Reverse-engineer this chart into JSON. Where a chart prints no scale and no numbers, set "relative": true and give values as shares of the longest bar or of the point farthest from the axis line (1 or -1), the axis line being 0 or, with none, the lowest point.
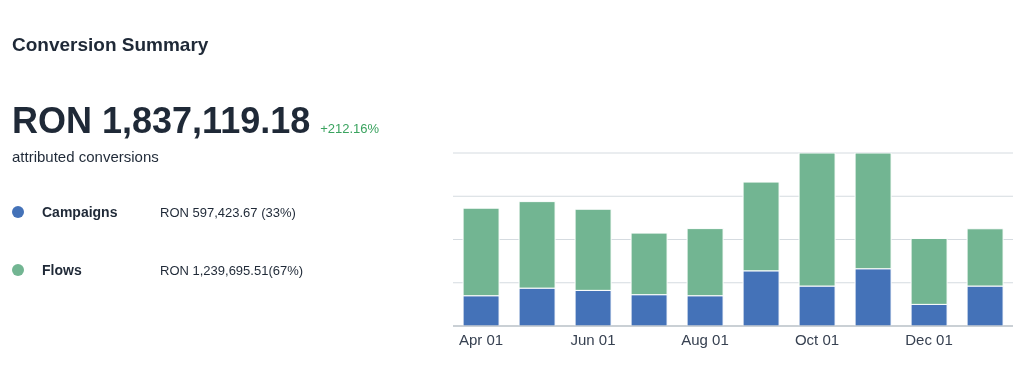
{
  "chart_data": {
    "type": "bar",
    "title": "Conversion Summary",
    "subtitle": "RON 1,837,119.18",
    "annotations": [
      "+212.16%",
      "attributed conversions",
      "RON 597,423.67 (33%)",
      "RON 1,239,695.51(67%)"
    ],
    "categories": [
      "Apr 01",
      null,
      "Jun 01",
      null,
      "Aug 01",
      null,
      "Oct 01",
      null,
      "Dec 01",
      null
    ],
    "stacked": true,
    "relative": true,
    "grid": "y",
    "legend": "left",
    "series": [
      {
        "name": "Campaigns",
        "color": "#4472b8",
        "values": [
          0.175,
          0.219,
          0.206,
          0.181,
          0.175,
          0.319,
          0.231,
          0.331,
          0.125,
          0.231
        ]
      },
      {
        "name": "Flows",
        "color": "#72b592",
        "values": [
          0.506,
          0.5,
          0.469,
          0.356,
          0.388,
          0.513,
          0.769,
          0.669,
          0.381,
          0.331
        ]
      }
    ]
  }
}
